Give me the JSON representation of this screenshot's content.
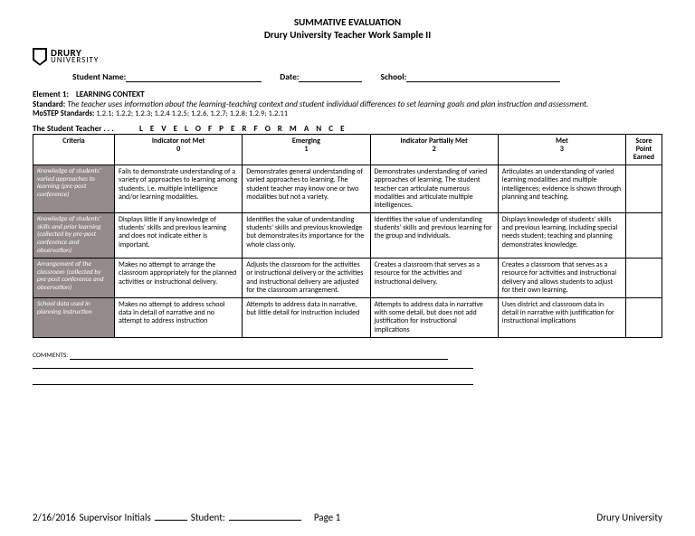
{
  "header": {
    "title1": "SUMMATIVE EVALUATION",
    "title2": "Drury University Teacher Work Sample II",
    "logo_top": "DRURY",
    "logo_bot": "UNIVERSITY"
  },
  "form": {
    "name_label": "Student Name:",
    "date_label": "Date:",
    "school_label": "School:"
  },
  "element": {
    "label": "Element 1:",
    "title": "LEARNING CONTEXT",
    "standard_label": "Standard:",
    "standard_text": "The teacher uses information about the learning-teaching context and student individual differences to set learning goals and plan instruction and assessment.",
    "mostep_label": "MoSTEP Standards:",
    "mostep_text": "1.2.1; 1.2.2; 1.2.3; 1.2.4 1.2.5; 1.2.6, 1.2.7; 1.2.8; 1.2.9; 1.2.11"
  },
  "levelrow": {
    "left": "The Student Teacher . . .",
    "right": "L E V E L   O F   P E R F O R M A N C E"
  },
  "table": {
    "headers": {
      "criteria": "Criteria",
      "c0a": "Indicator not Met",
      "c0b": "0",
      "c1a": "Emerging",
      "c1b": "1",
      "c2a": "Indicator Partially Met",
      "c2b": "2",
      "c3a": "Met",
      "c3b": "3",
      "score_a": "Score",
      "score_b": "Point",
      "score_c": "Earned"
    },
    "rows": [
      {
        "crit": "Knowledge of students' varied approaches to learning (pre-post conference)",
        "c0": "Fails to demonstrate understanding of a variety of approaches to learning among students, i.e. multiple intelligence and/or learning modalities.",
        "c1": "Demonstrates general understanding of varied approaches to learning.  The student teacher may know one or two modalities but not a variety.",
        "c2": "Demonstrates understanding of varied approaches of learning. The student teacher can articulate numerous modalities and articulate multiple intelligences.",
        "c3": "Articulates an understanding of varied learning modalities and multiple intelligences; evidence is shown through planning and teaching."
      },
      {
        "crit": "Knowledge of students' skills and prior learning (collected by pre-post conference and observation)",
        "c0": "Displays little if any knowledge of students' skills and previous learning and does not indicate either is important.",
        "c1": "Identifies the value of understanding students' skills and previous knowledge but demonstrates its importance for the whole class only.",
        "c2": "Identifies the value of understanding students' skills and previous learning for the group and individuals.",
        "c3": "Displays knowledge of students' skills and previous learning, including special needs student; teaching and planning demonstrates knowledge."
      },
      {
        "crit": "Arrangement of the classroom (collected by pre-post conference and observation)",
        "c0": "Makes no attempt to arrange the classroom appropriately for the planned activities or instructional delivery.",
        "c1": "Adjusts the classroom for the activities or instructional delivery or the activities and instructional delivery are adjusted for the classroom arrangement.",
        "c2": "Creates a classroom that serves as a resource for the activities and instructional delivery.",
        "c3": "Creates a classroom that serves as a resource for activities and instructional delivery and allows students to adjust for their own learning."
      },
      {
        "crit": "School data used in planning instruction",
        "c0": "Makes no attempt to address school data in detail of narrative and no attempt to address instruction",
        "c1": "Attempts to address data in narrative, but little detail for instruction included",
        "c2": "Attempts to address data in narrative with some detail, but does not add justification for instructional implications",
        "c3": "Uses district and classroom data in detail in narrative with justification for instructional implications"
      }
    ]
  },
  "comments_label": "COMMENTS:",
  "footer": {
    "date": "2/16/2016",
    "sup": "Supervisor Initials",
    "stu": "Student:",
    "page": "Page 1",
    "right": "Drury University"
  }
}
